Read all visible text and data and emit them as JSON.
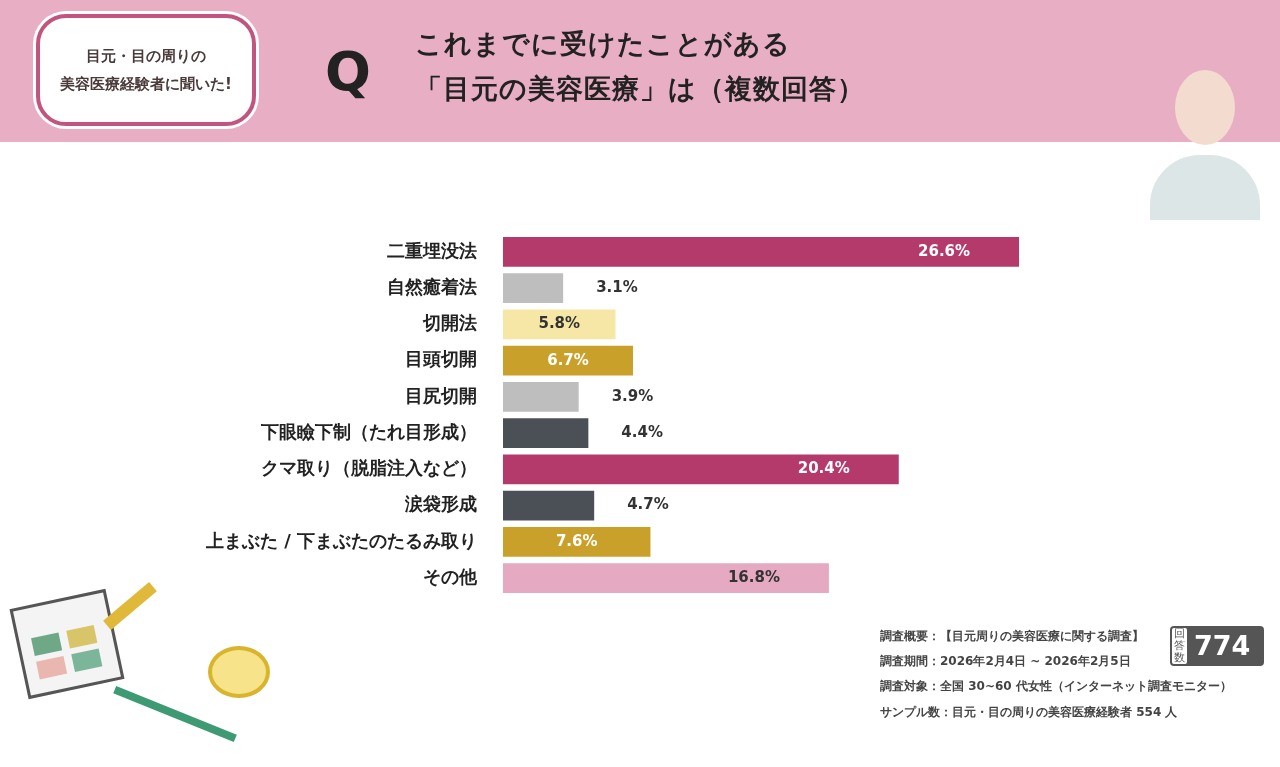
{
  "chart_data": {
    "type": "bar",
    "orientation": "horizontal",
    "title": "これまでに受けたことがある",
    "subtitle": "「目元の美容医療」は（複数回答）",
    "categories": [
      "二重埋没法",
      "自然癒着法",
      "切開法",
      "目頭切開",
      "目尻切開",
      "下眼瞼下制（たれ目形成）",
      "クマ取り（脱脂注入など）",
      "涙袋形成",
      "上まぶた / 下まぶたのたるみ取り",
      "その他"
    ],
    "values": [
      26.6,
      3.1,
      5.8,
      6.7,
      3.9,
      4.4,
      20.4,
      4.7,
      7.6,
      16.8
    ],
    "colors": [
      "#b43a6b",
      "#bebebe",
      "#f6e7a6",
      "#c9a02a",
      "#bebebe",
      "#4b5056",
      "#b43a6b",
      "#4b5056",
      "#c9a02a",
      "#e6a9c2"
    ],
    "value_labels": [
      "26.6%",
      "3.1%",
      "5.8%",
      "6.7%",
      "3.9%",
      "4.4%",
      "20.4%",
      "4.7%",
      "7.6%",
      "16.8%"
    ],
    "grid": false,
    "legend": false,
    "tick_labels": "y",
    "annotations": [
      "目元・目の周りの",
      "美容医療経験者に聞いた!",
      "Q",
      "回答数",
      "774",
      "調査概要：【目元周りの美容医療に関する調査】",
      "調査期間：2026年2月4日 ~ 2026年2月5日",
      "調査対象：全国 30~60 代女性（インターネット調査モニター）",
      "サンプル数：目元・目の周りの美容医療経験者 554 人"
    ]
  }
}
